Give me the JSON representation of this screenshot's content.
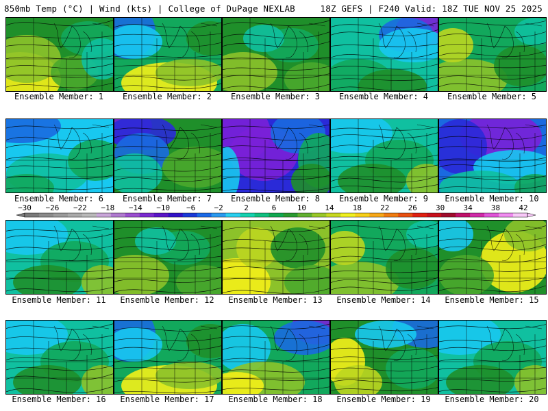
{
  "header": {
    "left": "850mb Temp (°C) | Wind (kts) | College of DuPage NEXLAB",
    "right": "18Z GEFS | F240 Valid: 18Z TUE NOV 25 2025"
  },
  "panels": [
    {
      "label": "Ensemble Member: 1",
      "theme": "green-warm-sw"
    },
    {
      "label": "Ensemble Member: 2",
      "theme": "yellow-south-blue-nw"
    },
    {
      "label": "Ensemble Member: 3",
      "theme": "green-mixed"
    },
    {
      "label": "Ensemble Member: 4",
      "theme": "cyan-purple-ne"
    },
    {
      "label": "Ensemble Member: 5",
      "theme": "green-yellow"
    },
    {
      "label": "Ensemble Member: 6",
      "theme": "cyan-cool"
    },
    {
      "label": "Ensemble Member: 7",
      "theme": "purple-nw-green"
    },
    {
      "label": "Ensemble Member: 8",
      "theme": "deep-cold-trough"
    },
    {
      "label": "Ensemble Member: 9",
      "theme": "cyan-green"
    },
    {
      "label": "Ensemble Member: 10",
      "theme": "purple-north"
    },
    {
      "label": "Ensemble Member: 11",
      "theme": "cyan-green"
    },
    {
      "label": "Ensemble Member: 12",
      "theme": "green-mixed"
    },
    {
      "label": "Ensemble Member: 13",
      "theme": "yellow-warm"
    },
    {
      "label": "Ensemble Member: 14",
      "theme": "green-yellow"
    },
    {
      "label": "Ensemble Member: 15",
      "theme": "yellow-east"
    },
    {
      "label": "Ensemble Member: 16",
      "theme": "cyan-green"
    },
    {
      "label": "Ensemble Member: 17",
      "theme": "yellow-south-blue-nw"
    },
    {
      "label": "Ensemble Member: 18",
      "theme": "purple-ne-green"
    },
    {
      "label": "Ensemble Member: 19",
      "theme": "blue-ne-yellow-w"
    },
    {
      "label": "Ensemble Member: 20",
      "theme": "cyan-green"
    }
  ],
  "colorbar": {
    "ticks": [
      "-30",
      "-26",
      "-22",
      "-18",
      "-14",
      "-10",
      "-6",
      "-2",
      "2",
      "6",
      "10",
      "14",
      "18",
      "22",
      "26",
      "30",
      "34",
      "38",
      "42"
    ],
    "colors": [
      "#7a7a7a",
      "#8a8a8a",
      "#9a9a9a",
      "#aaaaaa",
      "#b9b9b9",
      "#c9a6d9",
      "#b07ad0",
      "#9b4fd0",
      "#7a2ad0",
      "#5a16c8",
      "#3212c8",
      "#1a3ad8",
      "#1a6ae8",
      "#2a9af0",
      "#2ad0f0",
      "#14d2b0",
      "#10c080",
      "#10a850",
      "#2a9a30",
      "#62b030",
      "#9ac828",
      "#c8d820",
      "#f0f020",
      "#f8d018",
      "#f8a818",
      "#f07c10",
      "#e85010",
      "#e02010",
      "#c8101c",
      "#a00c2c",
      "#c0106a",
      "#d02aa8",
      "#e054d8",
      "#f08cf0",
      "#f8c8f8"
    ]
  },
  "palette": {
    "purple": "#7a20d8",
    "blue": "#2a2ad8",
    "blue2": "#1a6ae0",
    "cyan": "#18c8f0",
    "teal": "#10c0a0",
    "green1": "#12a85c",
    "green2": "#1f8f2a",
    "green3": "#4aa82c",
    "lgreen": "#8cc22a",
    "yelgrn": "#bcd620",
    "yellow": "#f4f018",
    "map_line": "#000000"
  }
}
